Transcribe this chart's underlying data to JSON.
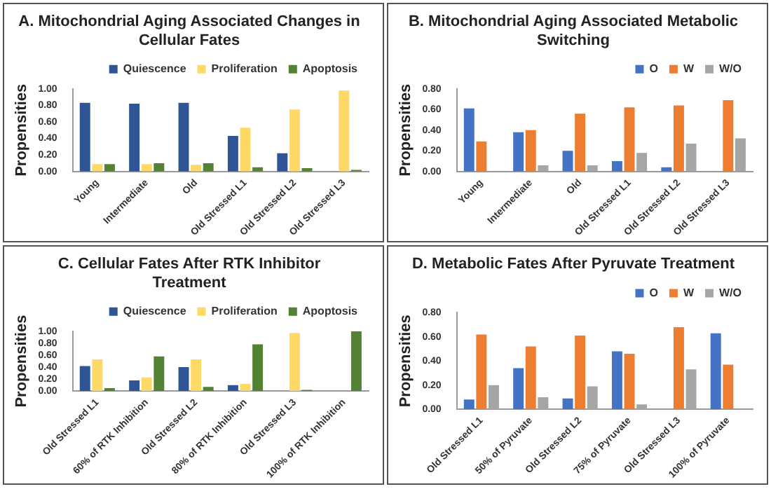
{
  "chart_data": [
    {
      "type": "bar",
      "title": "A. Mitochondrial Aging Associated Changes in Cellular Fates",
      "ylabel": "Propensities",
      "categories": [
        "Young",
        "Intermediate",
        "Old",
        "Old Stressed L1",
        "Old Stressed L2",
        "Old Stressed L3"
      ],
      "series": [
        {
          "name": "Quiescence",
          "color": "#2f5597",
          "values": [
            0.83,
            0.82,
            0.83,
            0.43,
            0.22,
            0
          ]
        },
        {
          "name": "Proliferation",
          "color": "#ffd966",
          "values": [
            0.09,
            0.09,
            0.08,
            0.53,
            0.75,
            0.98
          ]
        },
        {
          "name": "Apoptosis",
          "color": "#548235",
          "values": [
            0.09,
            0.1,
            0.1,
            0.05,
            0.04,
            0.02
          ]
        }
      ],
      "ylim": [
        0,
        1
      ],
      "yticks": [
        {
          "value": 0,
          "label": "0.00"
        },
        {
          "value": 0.2,
          "label": "0.20"
        },
        {
          "value": 0.4,
          "label": "0.40"
        },
        {
          "value": 0.6,
          "label": "0.60"
        },
        {
          "value": 0.8,
          "label": "0.80"
        },
        {
          "value": 1,
          "label": "1.00"
        }
      ],
      "legend": "top right",
      "grid": false
    },
    {
      "type": "bar",
      "title": "B. Mitochondrial Aging Associated Metabolic Switching",
      "ylabel": "Propensities",
      "categories": [
        "Young",
        "Intermediate",
        "Old",
        "Old Stressed L1",
        "Old Stressed L2",
        "Old Stressed L3"
      ],
      "series": [
        {
          "name": "O",
          "color": "#4472c4",
          "values": [
            0.61,
            0.38,
            0.2,
            0.1,
            0.04,
            0
          ]
        },
        {
          "name": "W",
          "color": "#ed7d31",
          "values": [
            0.29,
            0.4,
            0.56,
            0.62,
            0.64,
            0.69
          ]
        },
        {
          "name": "W/O",
          "color": "#a5a5a5",
          "values": [
            0,
            0.06,
            0.06,
            0.18,
            0.27,
            0.32
          ]
        }
      ],
      "ylim": [
        0,
        0.8
      ],
      "yticks": [
        {
          "value": 0,
          "label": "0.00"
        },
        {
          "value": 0.2,
          "label": "0.20"
        },
        {
          "value": 0.4,
          "label": "0.40"
        },
        {
          "value": 0.6,
          "label": "0.60"
        },
        {
          "value": 0.8,
          "label": "0.80"
        }
      ],
      "legend": "top right",
      "grid": false
    },
    {
      "type": "bar",
      "title": "C. Cellular Fates After RTK Inhibitor Treatment",
      "ylabel": "Propensities",
      "categories": [
        "Old Stressed L1",
        "60% of RTK Inhibition",
        "Old Stressed L2",
        "80% of RTK Inhibition",
        "Old Stressed L3",
        "100% of RTK Inhibition"
      ],
      "series": [
        {
          "name": "Quiescence",
          "color": "#2f5597",
          "values": [
            0.42,
            0.18,
            0.4,
            0.1,
            0,
            0
          ]
        },
        {
          "name": "Proliferation",
          "color": "#ffd966",
          "values": [
            0.53,
            0.23,
            0.53,
            0.12,
            0.97,
            0
          ]
        },
        {
          "name": "Apoptosis",
          "color": "#548235",
          "values": [
            0.05,
            0.58,
            0.07,
            0.78,
            0.02,
            1.0
          ]
        }
      ],
      "ylim": [
        0,
        1
      ],
      "yticks": [
        {
          "value": 0,
          "label": "0.00"
        },
        {
          "value": 0.2,
          "label": "0.20"
        },
        {
          "value": 0.4,
          "label": "0.40"
        },
        {
          "value": 0.6,
          "label": "0.60"
        },
        {
          "value": 0.8,
          "label": "0.80"
        },
        {
          "value": 1,
          "label": "1.00"
        }
      ],
      "legend": "top right",
      "grid": false
    },
    {
      "type": "bar",
      "title": "D. Metabolic Fates After Pyruvate Treatment",
      "ylabel": "Propensities",
      "categories": [
        "Old Stressed L1",
        "50% of Pyruvate",
        "Old Stressed L2",
        "75% of Pyruvate",
        "Old Stressed L3",
        "100% of Pyruvate"
      ],
      "series": [
        {
          "name": "O",
          "color": "#4472c4",
          "values": [
            0.08,
            0.34,
            0.09,
            0.48,
            0,
            0.63
          ]
        },
        {
          "name": "W",
          "color": "#ed7d31",
          "values": [
            0.62,
            0.52,
            0.61,
            0.46,
            0.68,
            0.37
          ]
        },
        {
          "name": "W/O",
          "color": "#a5a5a5",
          "values": [
            0.2,
            0.1,
            0.19,
            0.04,
            0.33,
            0
          ]
        }
      ],
      "ylim": [
        0,
        0.8
      ],
      "yticks": [
        {
          "value": 0,
          "label": "0.00"
        },
        {
          "value": 0.2,
          "label": "0.20"
        },
        {
          "value": 0.4,
          "label": "0.40"
        },
        {
          "value": 0.6,
          "label": "0.60"
        },
        {
          "value": 0.8,
          "label": "0.80"
        }
      ],
      "legend": "top right",
      "grid": false
    }
  ]
}
